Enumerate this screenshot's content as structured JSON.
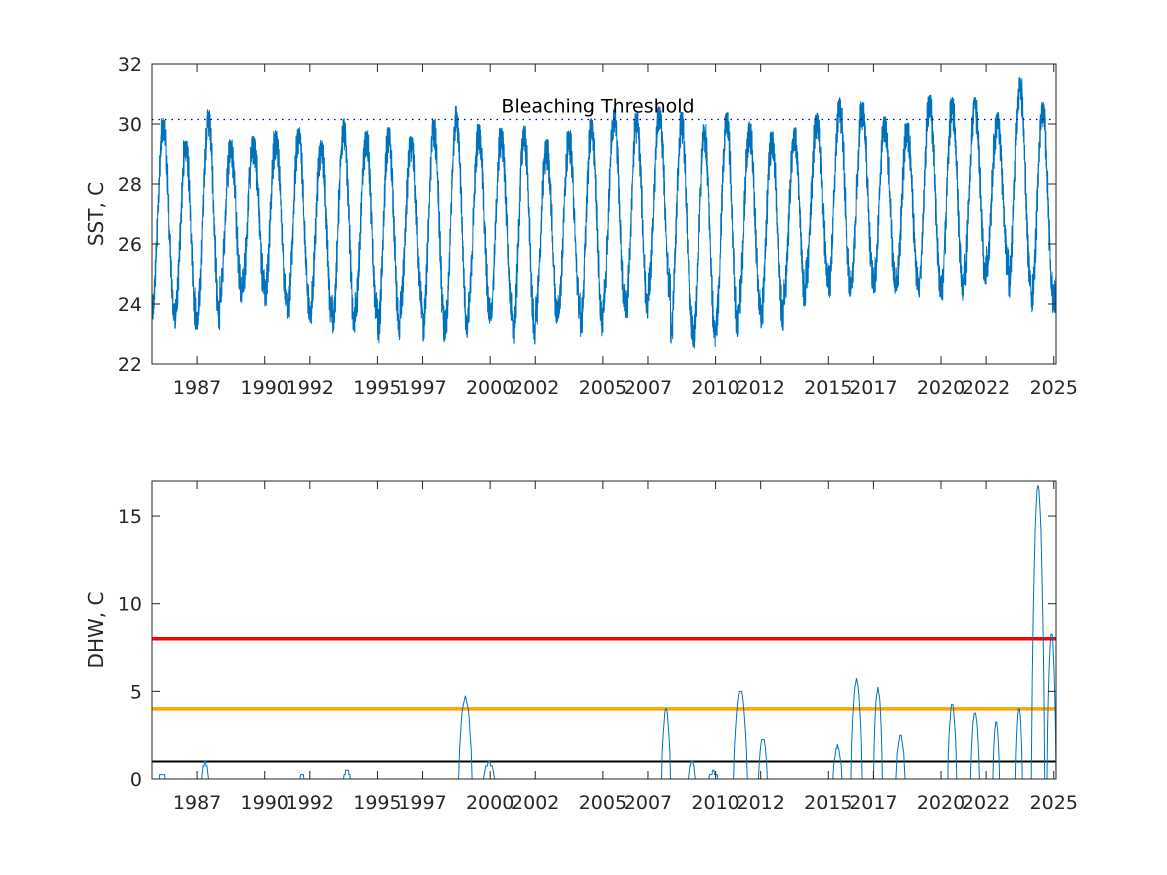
{
  "chart_data": [
    {
      "type": "line",
      "ylabel": "SST, C",
      "ylim": [
        22,
        32
      ],
      "yticks": [
        22,
        24,
        26,
        28,
        30,
        32
      ],
      "xlim": [
        1985.0,
        2025.1
      ],
      "xticks": [
        1987,
        1990,
        1992,
        1995,
        1997,
        2000,
        2002,
        2005,
        2007,
        2010,
        2012,
        2015,
        2017,
        2020,
        2022,
        2025
      ],
      "xtick_labels": [
        "1987",
        "1990",
        "1992",
        "1995",
        "1997",
        "2000",
        "2002",
        "2005",
        "2007",
        "2010",
        "2012",
        "2015",
        "2017",
        "2020",
        "2022",
        "2025"
      ],
      "grid": false,
      "threshold": {
        "label": "Bleaching Threshold",
        "value": 30.15,
        "style": "dotted",
        "color": "#00007f"
      },
      "series": [
        {
          "color": "#0072bd",
          "pattern": "seasonal cycle, one peak per year",
          "annual_peaks": [
            {
              "year": 1985.5,
              "max": 30.2,
              "min": 23.4
            },
            {
              "year": 1986.5,
              "max": 29.5,
              "min": 23.1
            },
            {
              "year": 1987.5,
              "max": 30.5,
              "min": 23.1
            },
            {
              "year": 1988.5,
              "max": 29.5,
              "min": 24.0
            },
            {
              "year": 1989.5,
              "max": 29.6,
              "min": 24.3
            },
            {
              "year": 1990.5,
              "max": 29.8,
              "min": 23.9
            },
            {
              "year": 1991.5,
              "max": 29.9,
              "min": 23.5
            },
            {
              "year": 1992.5,
              "max": 29.5,
              "min": 23.3
            },
            {
              "year": 1993.5,
              "max": 30.2,
              "min": 23.0
            },
            {
              "year": 1994.5,
              "max": 29.8,
              "min": 23.4
            },
            {
              "year": 1995.5,
              "max": 29.9,
              "min": 22.7
            },
            {
              "year": 1996.5,
              "max": 29.6,
              "min": 23.5
            },
            {
              "year": 1997.5,
              "max": 30.2,
              "min": 22.7
            },
            {
              "year": 1998.5,
              "max": 30.6,
              "min": 22.8
            },
            {
              "year": 1999.5,
              "max": 30.0,
              "min": 23.3
            },
            {
              "year": 2000.5,
              "max": 29.9,
              "min": 23.4
            },
            {
              "year": 2001.5,
              "max": 30.0,
              "min": 22.6
            },
            {
              "year": 2002.5,
              "max": 29.5,
              "min": 23.3
            },
            {
              "year": 2003.5,
              "max": 29.8,
              "min": 23.5
            },
            {
              "year": 2004.5,
              "max": 30.2,
              "min": 22.9
            },
            {
              "year": 2005.5,
              "max": 30.6,
              "min": 23.7
            },
            {
              "year": 2006.5,
              "max": 30.4,
              "min": 23.5
            },
            {
              "year": 2007.5,
              "max": 30.6,
              "min": 24.1
            },
            {
              "year": 2008.5,
              "max": 30.4,
              "min": 22.6
            },
            {
              "year": 2009.5,
              "max": 30.0,
              "min": 22.5
            },
            {
              "year": 2010.5,
              "max": 30.4,
              "min": 22.9
            },
            {
              "year": 2011.5,
              "max": 30.1,
              "min": 23.6
            },
            {
              "year": 2012.5,
              "max": 29.8,
              "min": 23.1
            },
            {
              "year": 2013.5,
              "max": 29.9,
              "min": 23.9
            },
            {
              "year": 2014.5,
              "max": 30.4,
              "min": 24.5
            },
            {
              "year": 2015.5,
              "max": 30.9,
              "min": 24.2
            },
            {
              "year": 2016.5,
              "max": 30.8,
              "min": 24.5
            },
            {
              "year": 2017.5,
              "max": 30.3,
              "min": 24.3
            },
            {
              "year": 2018.5,
              "max": 30.1,
              "min": 24.4
            },
            {
              "year": 2019.5,
              "max": 31.0,
              "min": 24.2
            },
            {
              "year": 2020.5,
              "max": 30.9,
              "min": 24.1
            },
            {
              "year": 2021.5,
              "max": 30.9,
              "min": 24.6
            },
            {
              "year": 2022.5,
              "max": 30.4,
              "min": 24.9
            },
            {
              "year": 2023.5,
              "max": 31.6,
              "min": 24.2
            },
            {
              "year": 2024.5,
              "max": 30.8,
              "min": 23.7
            }
          ]
        }
      ]
    },
    {
      "type": "line",
      "ylabel": "DHW, C",
      "ylim": [
        0,
        17
      ],
      "yticks": [
        0,
        5,
        10,
        15
      ],
      "xlim": [
        1985.0,
        2025.1
      ],
      "xticks": [
        1987,
        1990,
        1992,
        1995,
        1997,
        2000,
        2002,
        2005,
        2007,
        2010,
        2012,
        2015,
        2017,
        2020,
        2022,
        2025
      ],
      "xtick_labels": [
        "1987",
        "1990",
        "1992",
        "1995",
        "1997",
        "2000",
        "2002",
        "2005",
        "2007",
        "2010",
        "2012",
        "2015",
        "2017",
        "2020",
        "2022",
        "2025"
      ],
      "grid": false,
      "reference_lines": [
        {
          "value": 8,
          "color": "#ff0000"
        },
        {
          "value": 4,
          "color": "#ffa500"
        },
        {
          "value": 1,
          "color": "#000000"
        }
      ],
      "series": [
        {
          "color": "#0072bd",
          "events": [
            {
              "start": 1985.3,
              "end": 1985.6,
              "peak": 0.3
            },
            {
              "start": 1987.2,
              "end": 1987.5,
              "peak": 0.9
            },
            {
              "start": 1991.5,
              "end": 1991.8,
              "peak": 0.15
            },
            {
              "start": 1993.5,
              "end": 1993.8,
              "peak": 0.45
            },
            {
              "start": 1997.6,
              "end": 1997.9,
              "peak": 0.1
            },
            {
              "start": 1998.6,
              "end": 1999.2,
              "peak": 4.7
            },
            {
              "start": 1999.7,
              "end": 2000.2,
              "peak": 0.9
            },
            {
              "start": 2001.8,
              "end": 2002.0,
              "peak": 0.05
            },
            {
              "start": 2004.8,
              "end": 2005.1,
              "peak": 0.1
            },
            {
              "start": 2006.6,
              "end": 2006.8,
              "peak": 0.1
            },
            {
              "start": 2007.6,
              "end": 2008.0,
              "peak": 4.0
            },
            {
              "start": 2008.8,
              "end": 2009.1,
              "peak": 1.0
            },
            {
              "start": 2009.7,
              "end": 2010.1,
              "peak": 0.4
            },
            {
              "start": 2010.8,
              "end": 2011.4,
              "peak": 5.0
            },
            {
              "start": 2011.9,
              "end": 2012.3,
              "peak": 2.3
            },
            {
              "start": 2015.2,
              "end": 2015.6,
              "peak": 1.9
            },
            {
              "start": 2016.0,
              "end": 2016.5,
              "peak": 5.7
            },
            {
              "start": 2017.0,
              "end": 2017.4,
              "peak": 5.2
            },
            {
              "start": 2018.0,
              "end": 2018.4,
              "peak": 2.5
            },
            {
              "start": 2020.3,
              "end": 2020.7,
              "peak": 4.3
            },
            {
              "start": 2021.3,
              "end": 2021.7,
              "peak": 3.8
            },
            {
              "start": 2022.3,
              "end": 2022.6,
              "peak": 3.2
            },
            {
              "start": 2023.3,
              "end": 2023.6,
              "peak": 4.1
            },
            {
              "start": 2024.0,
              "end": 2024.6,
              "peak": 16.8
            },
            {
              "start": 2024.7,
              "end": 2025.1,
              "peak": 8.3
            }
          ]
        }
      ]
    }
  ]
}
